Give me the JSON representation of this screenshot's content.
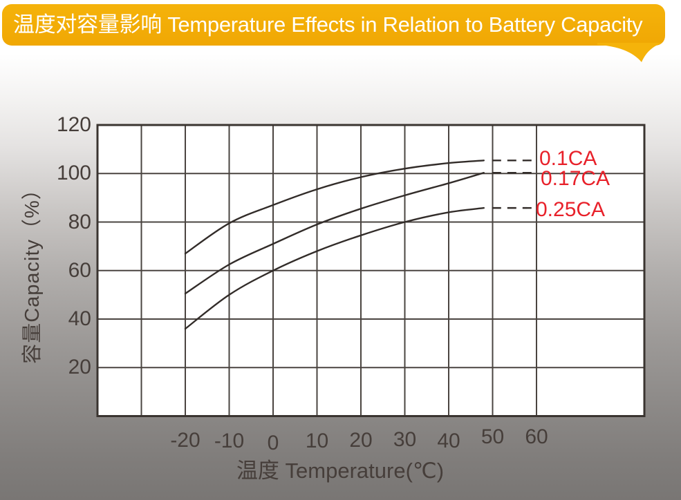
{
  "banner": {
    "title": "温度对容量影响 Temperature Effects in Relation to Battery Capacity"
  },
  "colors": {
    "banner_bg": "#F5B30A",
    "banner_text": "#FFFFFF",
    "axis_text": "#463E3A",
    "grid_line": "#4A4440",
    "plot_border": "#3A3430",
    "curve": "#322C29",
    "series_label": "#E8212A",
    "plot_bg": "#FFFFFF"
  },
  "chart_data": {
    "type": "line",
    "title": "温度对容量影响 Temperature Effects in Relation to Battery Capacity",
    "xlabel": "温度 Temperature(℃)",
    "ylabel": "容量Capacity（%）",
    "x_tick_labels": [
      "-20",
      "-10",
      "0",
      "10",
      "20",
      "30",
      "40",
      "50",
      "60"
    ],
    "x_tick_values": [
      -20,
      -10,
      0,
      10,
      20,
      30,
      40,
      50,
      60
    ],
    "y_tick_labels": [
      "120",
      "100",
      "80",
      "60",
      "40",
      "20"
    ],
    "y_tick_values": [
      120,
      100,
      80,
      60,
      40,
      20
    ],
    "ylim": [
      0,
      120
    ],
    "x_grid_range_deg": [
      -40,
      60
    ],
    "grid": true,
    "legend_position": "right-inline-labels",
    "series": [
      {
        "name": "0.1CA",
        "x": [
          -20,
          -10,
          0,
          10,
          20,
          30,
          40,
          48
        ],
        "values": [
          67,
          79.5,
          87,
          93.5,
          98.5,
          102,
          104.3,
          105.4
        ]
      },
      {
        "name": "0.17CA",
        "x": [
          -20,
          -10,
          0,
          10,
          20,
          30,
          40,
          48
        ],
        "values": [
          50.5,
          62.5,
          71,
          79,
          85.5,
          91,
          96,
          100.3
        ]
      },
      {
        "name": "0.25CA",
        "x": [
          -20,
          -10,
          0,
          10,
          20,
          30,
          40,
          48
        ],
        "values": [
          36,
          50,
          60,
          68,
          74.5,
          80,
          84,
          85.8
        ]
      }
    ]
  }
}
